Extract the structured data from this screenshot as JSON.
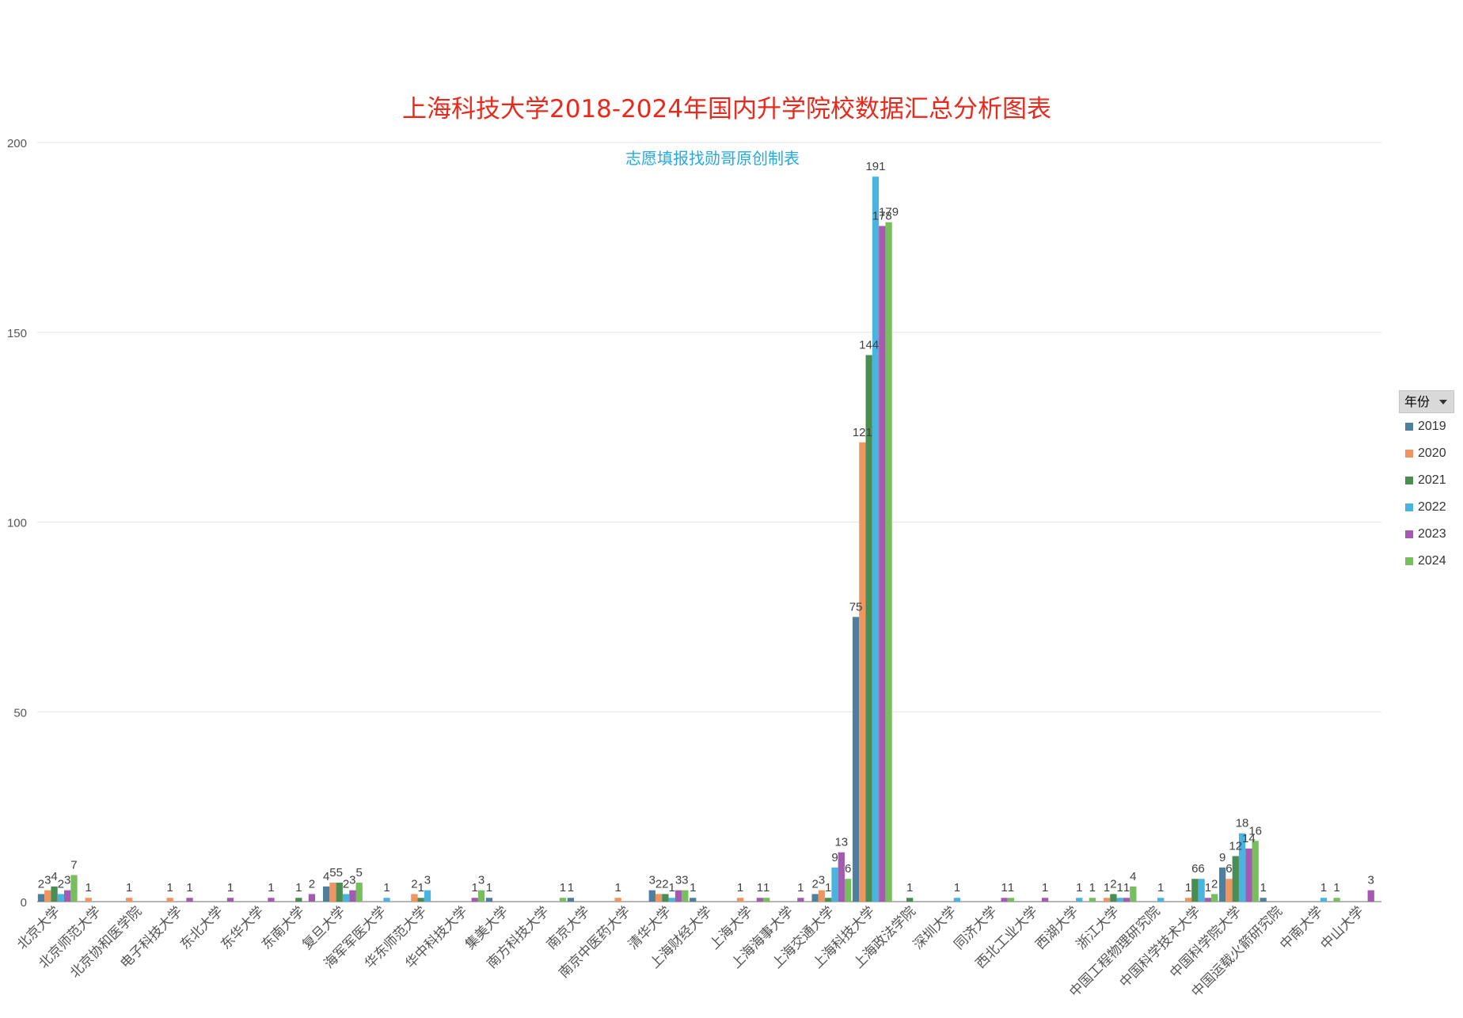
{
  "colors": {
    "title": "#e8291c",
    "subtitle": "#25a9e0",
    "series": [
      "#4e7f9e",
      "#ee9561",
      "#4a8d53",
      "#4bb4de",
      "#a35ab0",
      "#78be5e"
    ]
  },
  "legend": {
    "header": "年份"
  },
  "chart_data": {
    "type": "bar",
    "title": "上海科技大学2018-2024年国内升学院校数据汇总分析图表",
    "subtitle": "志愿填报找勋哥原创制表",
    "xlabel": "",
    "ylabel": "",
    "ylim": [
      0,
      200
    ],
    "yticks": [
      0,
      50,
      100,
      150,
      200
    ],
    "grid": true,
    "legend_position": "right",
    "categories": [
      "北京大学",
      "北京师范大学",
      "北京协和医学院",
      "电子科技大学",
      "东北大学",
      "东华大学",
      "东南大学",
      "复旦大学",
      "海军军医大学",
      "华东师范大学",
      "华中科技大学",
      "集美大学",
      "南方科技大学",
      "南京大学",
      "南京中医药大学",
      "清华大学",
      "上海财经大学",
      "上海大学",
      "上海海事大学",
      "上海交通大学",
      "上海科技大学",
      "上海政法学院",
      "深圳大学",
      "同济大学",
      "西北工业大学",
      "西湖大学",
      "浙江大学",
      "中国工程物理研究院",
      "中国科学技术大学",
      "中国科学院大学",
      "中国运载火箭研究院",
      "中南大学",
      "中山大学"
    ],
    "series": [
      {
        "name": "2019",
        "values": [
          2,
          null,
          null,
          null,
          null,
          null,
          null,
          4,
          null,
          null,
          null,
          1,
          null,
          1,
          null,
          3,
          1,
          null,
          null,
          2,
          75,
          null,
          null,
          null,
          null,
          null,
          null,
          null,
          null,
          9,
          1,
          null,
          null
        ]
      },
      {
        "name": "2020",
        "values": [
          3,
          1,
          1,
          1,
          null,
          null,
          null,
          5,
          null,
          2,
          null,
          null,
          null,
          null,
          1,
          2,
          null,
          1,
          null,
          3,
          121,
          null,
          null,
          null,
          null,
          null,
          1,
          null,
          1,
          6,
          null,
          null,
          null
        ]
      },
      {
        "name": "2021",
        "values": [
          4,
          null,
          null,
          null,
          null,
          null,
          1,
          5,
          null,
          1,
          null,
          null,
          null,
          null,
          null,
          2,
          null,
          null,
          null,
          1,
          144,
          1,
          null,
          null,
          null,
          null,
          2,
          null,
          6,
          12,
          null,
          null,
          null
        ]
      },
      {
        "name": "2022",
        "values": [
          2,
          null,
          null,
          null,
          null,
          null,
          null,
          2,
          1,
          3,
          null,
          null,
          null,
          null,
          null,
          1,
          null,
          null,
          null,
          9,
          191,
          null,
          1,
          null,
          null,
          1,
          1,
          1,
          6,
          18,
          null,
          1,
          null
        ]
      },
      {
        "name": "2023",
        "values": [
          3,
          null,
          null,
          1,
          1,
          1,
          2,
          3,
          null,
          null,
          1,
          null,
          null,
          null,
          null,
          3,
          null,
          1,
          1,
          13,
          178,
          null,
          null,
          1,
          1,
          null,
          1,
          null,
          1,
          14,
          null,
          null,
          3
        ]
      },
      {
        "name": "2024",
        "values": [
          7,
          null,
          null,
          null,
          null,
          null,
          null,
          5,
          null,
          null,
          3,
          null,
          1,
          null,
          null,
          3,
          null,
          1,
          null,
          6,
          179,
          null,
          null,
          1,
          null,
          1,
          4,
          null,
          2,
          16,
          null,
          1,
          null
        ]
      }
    ]
  }
}
